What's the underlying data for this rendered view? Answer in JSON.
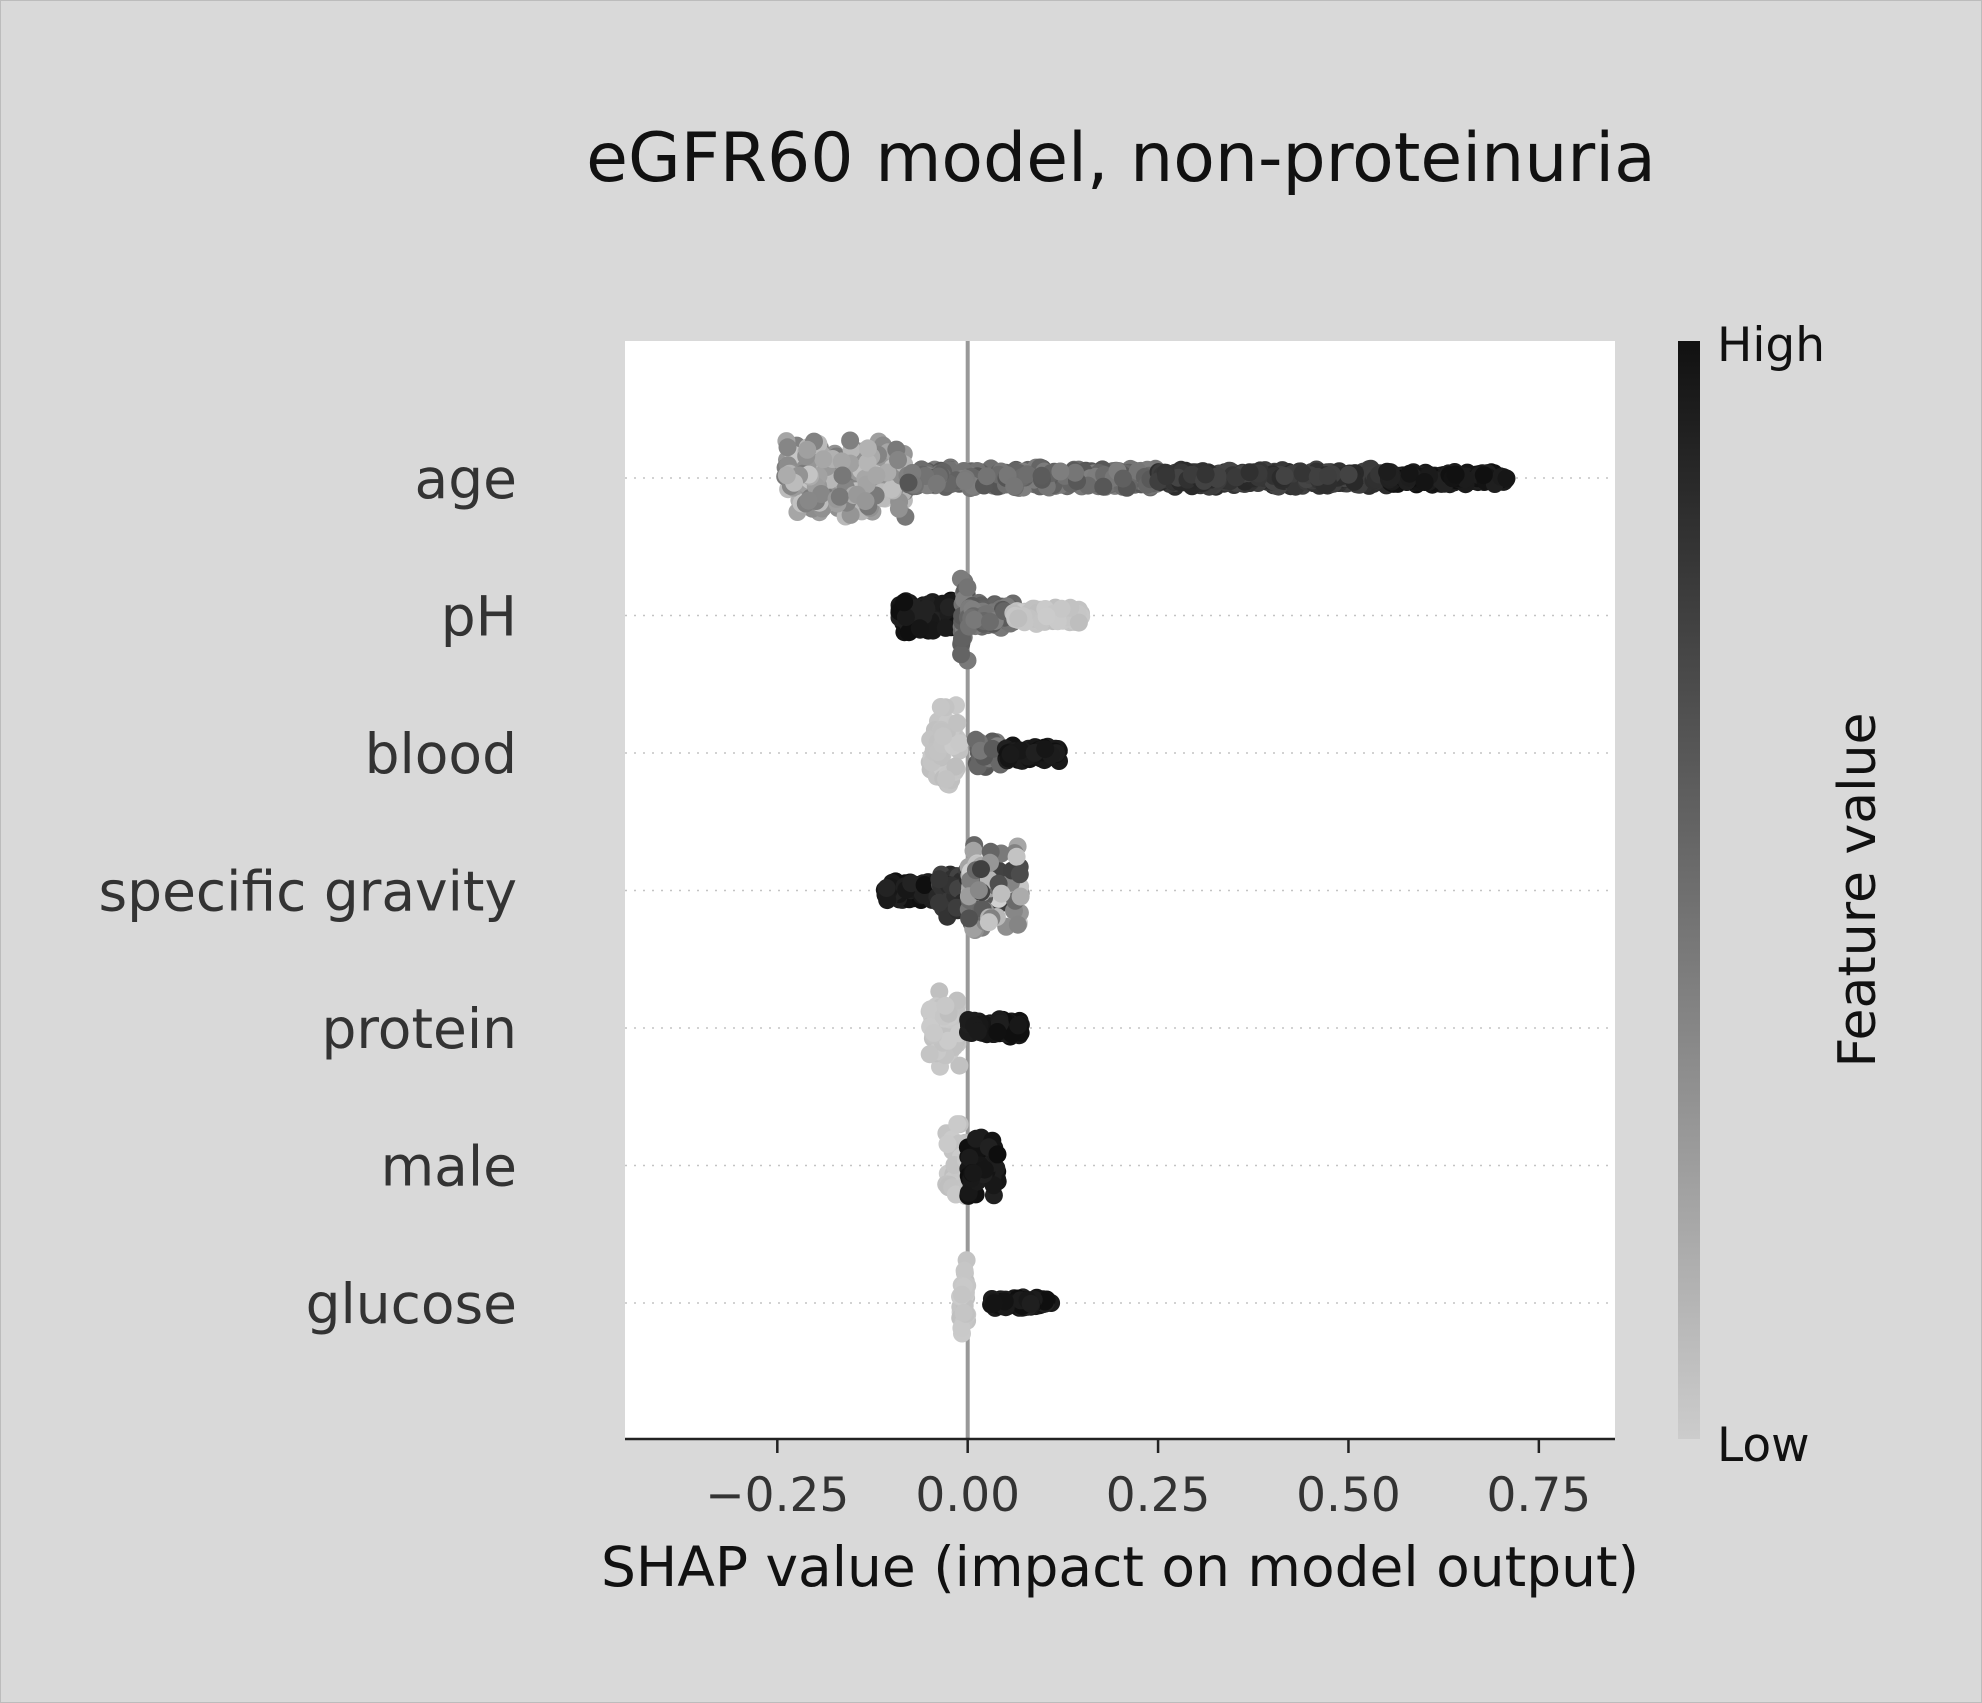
{
  "chart_data": {
    "type": "scatter",
    "subtype": "shap-beeswarm",
    "title": "eGFR60 model, non-proteinuria",
    "xlabel": "SHAP value (impact on model output)",
    "xlim": [
      -0.45,
      0.85
    ],
    "xticks": [
      -0.25,
      0.0,
      0.25,
      0.5,
      0.75
    ],
    "xtick_labels": [
      "−0.25",
      "0.00",
      "0.25",
      "0.50",
      "0.75"
    ],
    "zero_line": 0.0,
    "colorbar": {
      "label": "Feature value",
      "high": "High",
      "low": "Low",
      "high_color": "#111111",
      "low_color": "#cccccc"
    },
    "features": [
      {
        "name": "age",
        "groups": [
          {
            "range": [
              -0.24,
              -0.08
            ],
            "spread": 0.7,
            "shade": "mixed-light"
          },
          {
            "range": [
              -0.08,
              0.25
            ],
            "spread": 0.18,
            "shade": "mid"
          },
          {
            "range": [
              0.25,
              0.55
            ],
            "spread": 0.16,
            "shade": "dark"
          },
          {
            "range": [
              0.55,
              0.71
            ],
            "spread": 0.12,
            "shade": "darkest"
          }
        ]
      },
      {
        "name": "pH",
        "groups": [
          {
            "range": [
              -0.09,
              -0.01
            ],
            "spread": 0.3,
            "shade": "darkest"
          },
          {
            "range": [
              -0.01,
              0.0
            ],
            "spread": 0.8,
            "shade": "mid"
          },
          {
            "range": [
              0.0,
              0.06
            ],
            "spread": 0.22,
            "shade": "mid"
          },
          {
            "range": [
              0.06,
              0.15
            ],
            "spread": 0.14,
            "shade": "light"
          }
        ]
      },
      {
        "name": "blood",
        "groups": [
          {
            "range": [
              -0.05,
              -0.01
            ],
            "spread": 0.8,
            "shade": "light"
          },
          {
            "range": [
              0.01,
              0.05
            ],
            "spread": 0.24,
            "shade": "mid"
          },
          {
            "range": [
              0.05,
              0.12
            ],
            "spread": 0.14,
            "shade": "darkest"
          }
        ]
      },
      {
        "name": "specific gravity",
        "groups": [
          {
            "range": [
              -0.11,
              -0.04
            ],
            "spread": 0.18,
            "shade": "darkest"
          },
          {
            "range": [
              -0.04,
              0.0
            ],
            "spread": 0.5,
            "shade": "dark"
          },
          {
            "range": [
              0.0,
              0.07
            ],
            "spread": 0.75,
            "shade": "mixed-mid"
          }
        ]
      },
      {
        "name": "protein",
        "groups": [
          {
            "range": [
              -0.05,
              -0.01
            ],
            "spread": 0.8,
            "shade": "light"
          },
          {
            "range": [
              0.0,
              0.07
            ],
            "spread": 0.16,
            "shade": "darkest"
          }
        ]
      },
      {
        "name": "male",
        "groups": [
          {
            "range": [
              -0.03,
              0.0
            ],
            "spread": 0.8,
            "shade": "light"
          },
          {
            "range": [
              0.0,
              0.04
            ],
            "spread": 0.55,
            "shade": "darkest"
          }
        ]
      },
      {
        "name": "glucose",
        "groups": [
          {
            "range": [
              -0.01,
              0.0
            ],
            "spread": 0.85,
            "shade": "light"
          },
          {
            "range": [
              0.03,
              0.11
            ],
            "spread": 0.1,
            "shade": "darkest"
          }
        ]
      }
    ]
  }
}
